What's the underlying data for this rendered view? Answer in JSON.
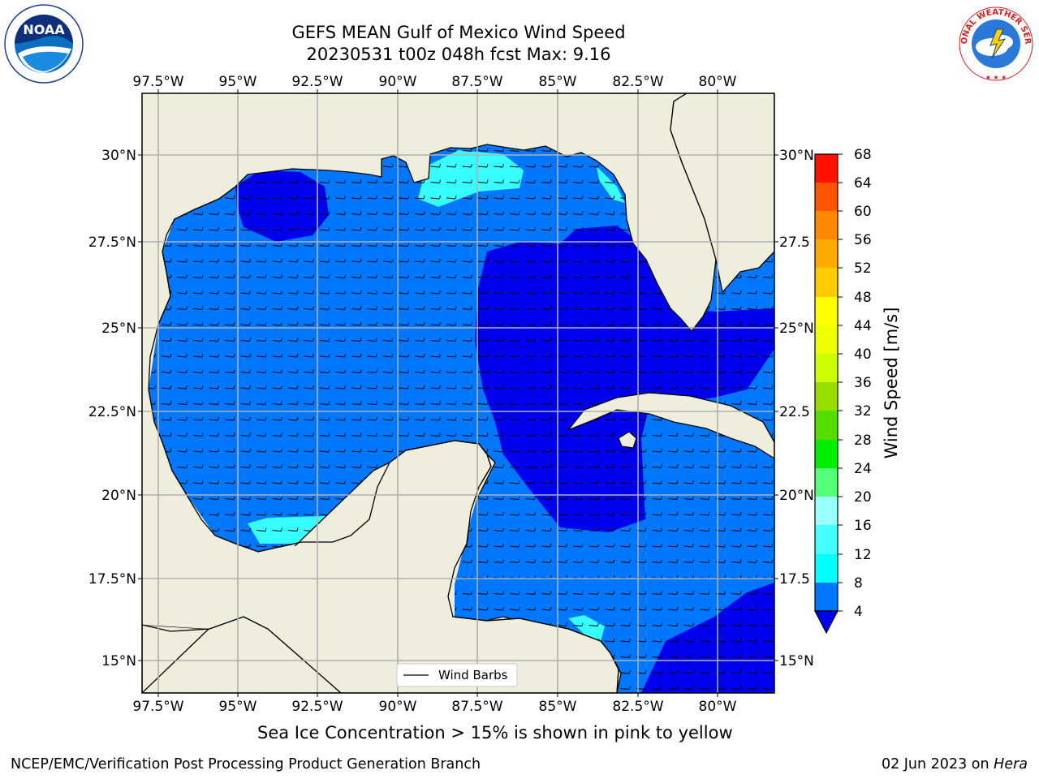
{
  "header": {
    "title_line1": "GEFS MEAN Gulf of Mexico Wind Speed",
    "title_line2": "20230531 t00z 048h fcst   Max: 9.16"
  },
  "logos": {
    "left": "NOAA",
    "left_ring_text": "NATIONAL OCEANIC AND ATMOSPHERIC ADMINISTRATION · U.S. DEPARTMENT OF COMMERCE",
    "right_ring_text": "NATIONAL WEATHER SERVICE"
  },
  "map": {
    "top_axis_labels": [
      "97.5°W",
      "95°W",
      "92.5°W",
      "90°W",
      "87.5°W",
      "85°W",
      "82.5°W",
      "80°W"
    ],
    "bottom_axis_labels": [
      "97.5°W",
      "95°W",
      "92.5°W",
      "90°W",
      "87.5°W",
      "85°W",
      "82.5°W",
      "80°W"
    ],
    "left_axis_labels": [
      "30°N",
      "27.5°N",
      "25°N",
      "22.5°N",
      "20°N",
      "17.5°N",
      "15°N"
    ],
    "right_axis_labels": [
      "30°N",
      "27.5",
      "25°N",
      "22.5",
      "20°N",
      "17.5",
      "15°N"
    ],
    "legend_label": "Wind Barbs",
    "colors": {
      "land": "#efeddc",
      "ocean_4_8": "#0077ff",
      "ocean_lt4": "#0000ee",
      "ocean_8_12": "#38ffff"
    }
  },
  "colorbar": {
    "title": "Wind Speed [m/s]",
    "ticks": [
      "68",
      "64",
      "60",
      "56",
      "52",
      "48",
      "44",
      "40",
      "36",
      "32",
      "28",
      "24",
      "20",
      "16",
      "12",
      "8",
      "4"
    ],
    "colors": [
      "#0000ee",
      "#0077ff",
      "#00ffff",
      "#38ffff",
      "#66ffff",
      "#99ffff",
      "#55ff77",
      "#00ee00",
      "#44dd00",
      "#88dd00",
      "#ccff00",
      "#eeff00",
      "#ffff00",
      "#ffcc00",
      "#ffaa00",
      "#ff8800",
      "#ff5500",
      "#ff2200",
      "#ff0000"
    ]
  },
  "caption": "Sea Ice Concentration > 15% is shown in pink to yellow",
  "footer": {
    "left": "NCEP/EMC/Verification Post Processing Product Generation Branch",
    "date": "02 Jun 2023 on ",
    "host": "Hera"
  }
}
